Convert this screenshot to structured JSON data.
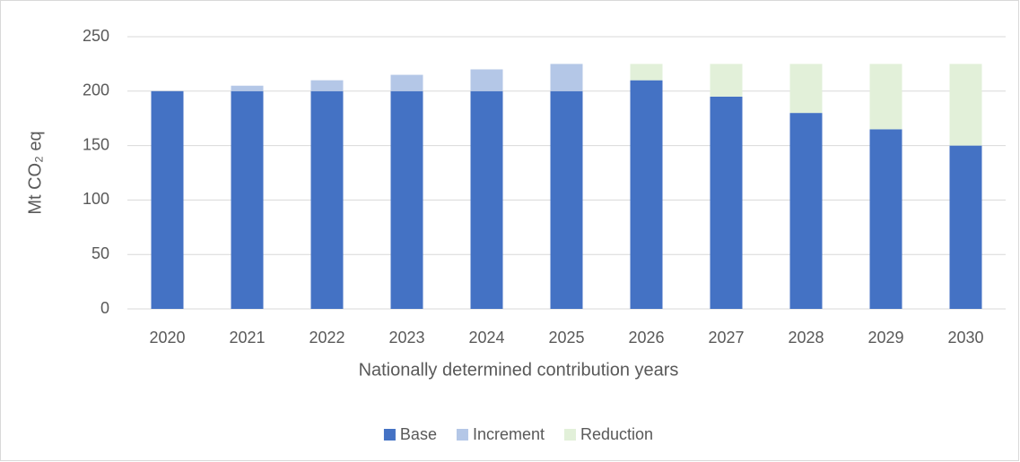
{
  "chart_data": {
    "type": "stacked_bar",
    "xlabel": "Nationally determined contribution years",
    "ylabel": "Mt CO₂ eq",
    "categories": [
      "2020",
      "2021",
      "2022",
      "2023",
      "2024",
      "2025",
      "2026",
      "2027",
      "2028",
      "2029",
      "2030"
    ],
    "series": [
      {
        "name": "Base",
        "color": "#4472c4",
        "values": [
          200,
          200,
          200,
          200,
          200,
          200,
          210,
          195,
          180,
          165,
          150
        ]
      },
      {
        "name": "Increment",
        "color": "#b4c7e7",
        "values": [
          0,
          5,
          10,
          15,
          20,
          25,
          0,
          0,
          0,
          0,
          0
        ]
      },
      {
        "name": "Reduction",
        "color": "#e2f0d9",
        "values": [
          0,
          0,
          0,
          0,
          0,
          0,
          15,
          30,
          45,
          60,
          75
        ]
      }
    ],
    "ylim": [
      0,
      250
    ],
    "yticks": [
      0,
      50,
      100,
      150,
      200,
      250
    ],
    "grid": true,
    "legend": "bottom"
  }
}
